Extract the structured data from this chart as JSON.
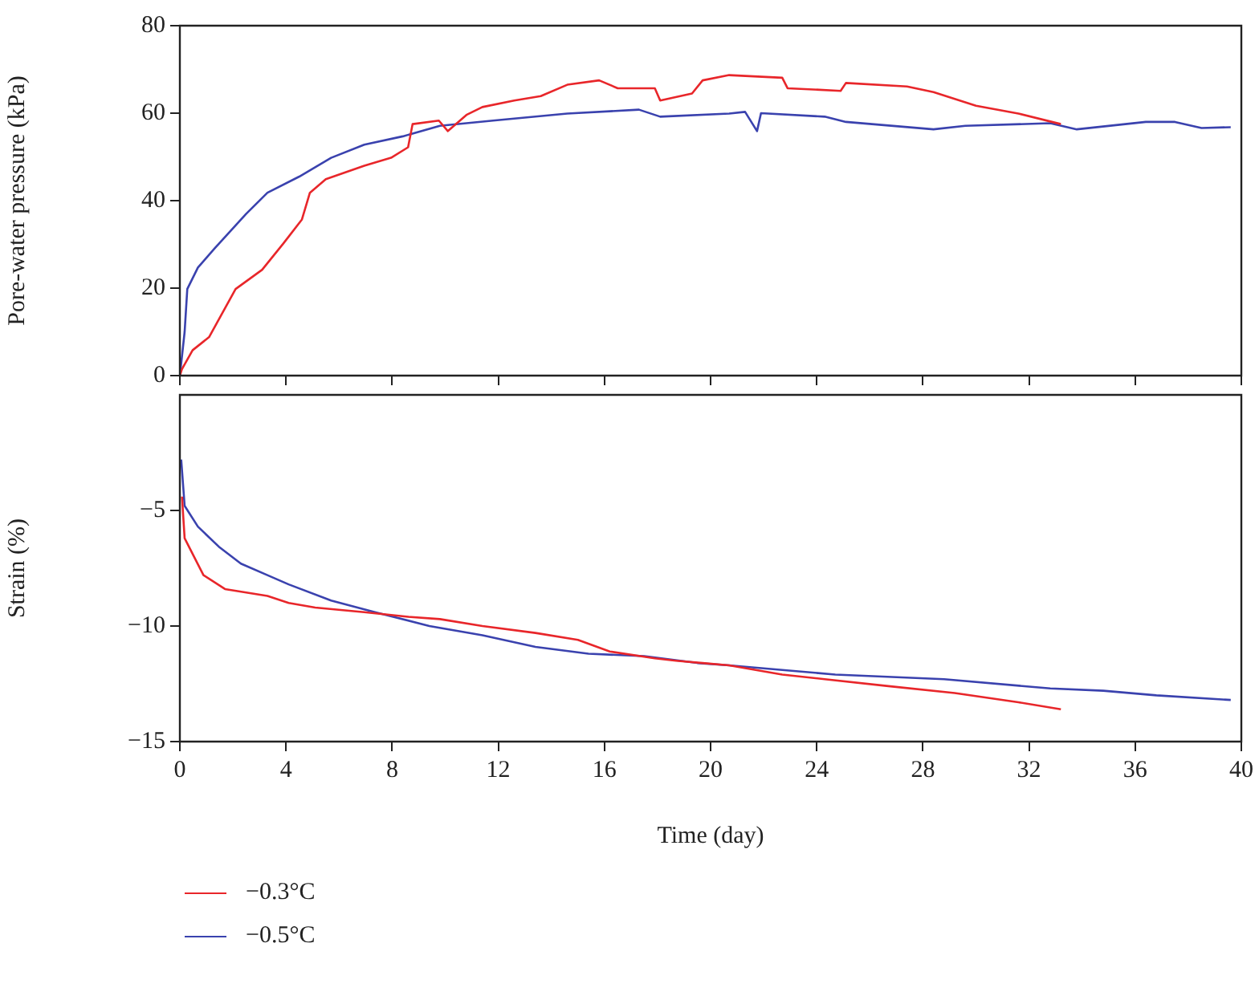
{
  "chart_data": [
    {
      "type": "line",
      "ylabel": "Pore-water pressure (kPa)",
      "xlim": [
        0,
        40
      ],
      "xticks": [
        0,
        4,
        8,
        12,
        16,
        20,
        24,
        28,
        32,
        36,
        40
      ],
      "ylim": [
        0,
        80
      ],
      "yticks": [
        0,
        20,
        40,
        60,
        80
      ],
      "tick_labels": "y",
      "grid": false,
      "legend": false,
      "series": [
        {
          "color": "#e8262a",
          "x": [
            0,
            0.08,
            0.48,
            1.1,
            2.1,
            3.1,
            3.9,
            4.6,
            4.9,
            5.5,
            6.95,
            7.96,
            8.6,
            8.77,
            9.76,
            10.1,
            10.8,
            11.4,
            12.6,
            13.6,
            14.6,
            15.8,
            16.5,
            17.9,
            18.1,
            19.3,
            19.7,
            20.7,
            22.7,
            22.9,
            24.9,
            25.1,
            27.4,
            28.4,
            30.0,
            31.6,
            33.2
          ],
          "values": [
            0,
            1.5,
            5.8,
            8.8,
            19.8,
            24.2,
            30.2,
            35.7,
            41.8,
            44.9,
            48,
            49.8,
            52.2,
            57.5,
            58.3,
            55.9,
            59.6,
            61.4,
            62.9,
            63.9,
            66.5,
            67.5,
            65.7,
            65.7,
            62.9,
            64.5,
            67.5,
            68.7,
            68.1,
            65.7,
            65.1,
            66.9,
            66.1,
            64.8,
            61.7,
            59.9,
            57.5
          ]
        },
        {
          "color": "#3a42ae",
          "x": [
            0,
            0.18,
            0.28,
            0.68,
            1.3,
            2.5,
            3.3,
            4.5,
            5.7,
            6.95,
            8.4,
            9.8,
            11.8,
            14.6,
            17.3,
            18.1,
            20.7,
            21.3,
            21.75,
            21.9,
            24.3,
            25.1,
            28.4,
            29.6,
            32.8,
            33.8,
            36.4,
            37.5,
            38.5,
            39.6
          ],
          "values": [
            0,
            10,
            19.8,
            24.7,
            29,
            37,
            41.8,
            45.5,
            49.8,
            52.8,
            54.7,
            57.1,
            58.3,
            59.9,
            60.8,
            59.2,
            59.9,
            60.3,
            55.9,
            60,
            59.2,
            58,
            56.3,
            57.1,
            57.7,
            56.3,
            58,
            58,
            56.6,
            56.8
          ]
        }
      ]
    },
    {
      "type": "line",
      "xlabel": "Time (day)",
      "ylabel": "Strain (%)",
      "xlim": [
        0,
        40
      ],
      "xticks": [
        0,
        4,
        8,
        12,
        16,
        20,
        24,
        28,
        32,
        36,
        40
      ],
      "ylim": [
        -15,
        0
      ],
      "yticks": [
        -15,
        -10,
        -5
      ],
      "grid": false,
      "legend": "bottom left",
      "series": [
        {
          "name": "−0.3°C",
          "color": "#e8262a",
          "x": [
            0.08,
            0.18,
            0.89,
            1.7,
            3.3,
            4.1,
            5.1,
            6.95,
            8.6,
            9.8,
            11.4,
            13.4,
            15.0,
            16.2,
            17.9,
            18.7,
            19.7,
            20.7,
            22.7,
            24.3,
            26.7,
            29.2,
            31.6,
            33.2
          ],
          "values": [
            -4.4,
            -6.2,
            -7.8,
            -8.4,
            -8.7,
            -9.0,
            -9.2,
            -9.4,
            -9.6,
            -9.7,
            -10.0,
            -10.3,
            -10.6,
            -11.1,
            -11.4,
            -11.5,
            -11.6,
            -11.7,
            -12.1,
            -12.3,
            -12.6,
            -12.9,
            -13.3,
            -13.6
          ]
        },
        {
          "name": "−0.5°C",
          "color": "#3a42ae",
          "x": [
            0.05,
            0.18,
            0.68,
            1.5,
            2.3,
            3.3,
            4.1,
            5.7,
            7.35,
            9.4,
            11.4,
            13.4,
            15.4,
            17.5,
            19.5,
            20.7,
            22.7,
            24.7,
            28.8,
            32.8,
            34.8,
            36.8,
            39.6
          ],
          "values": [
            -2.8,
            -4.8,
            -5.7,
            -6.6,
            -7.3,
            -7.8,
            -8.2,
            -8.9,
            -9.4,
            -10.0,
            -10.4,
            -10.9,
            -11.2,
            -11.3,
            -11.6,
            -11.7,
            -11.9,
            -12.1,
            -12.3,
            -12.7,
            -12.8,
            -13.0,
            -13.2
          ]
        }
      ]
    }
  ]
}
